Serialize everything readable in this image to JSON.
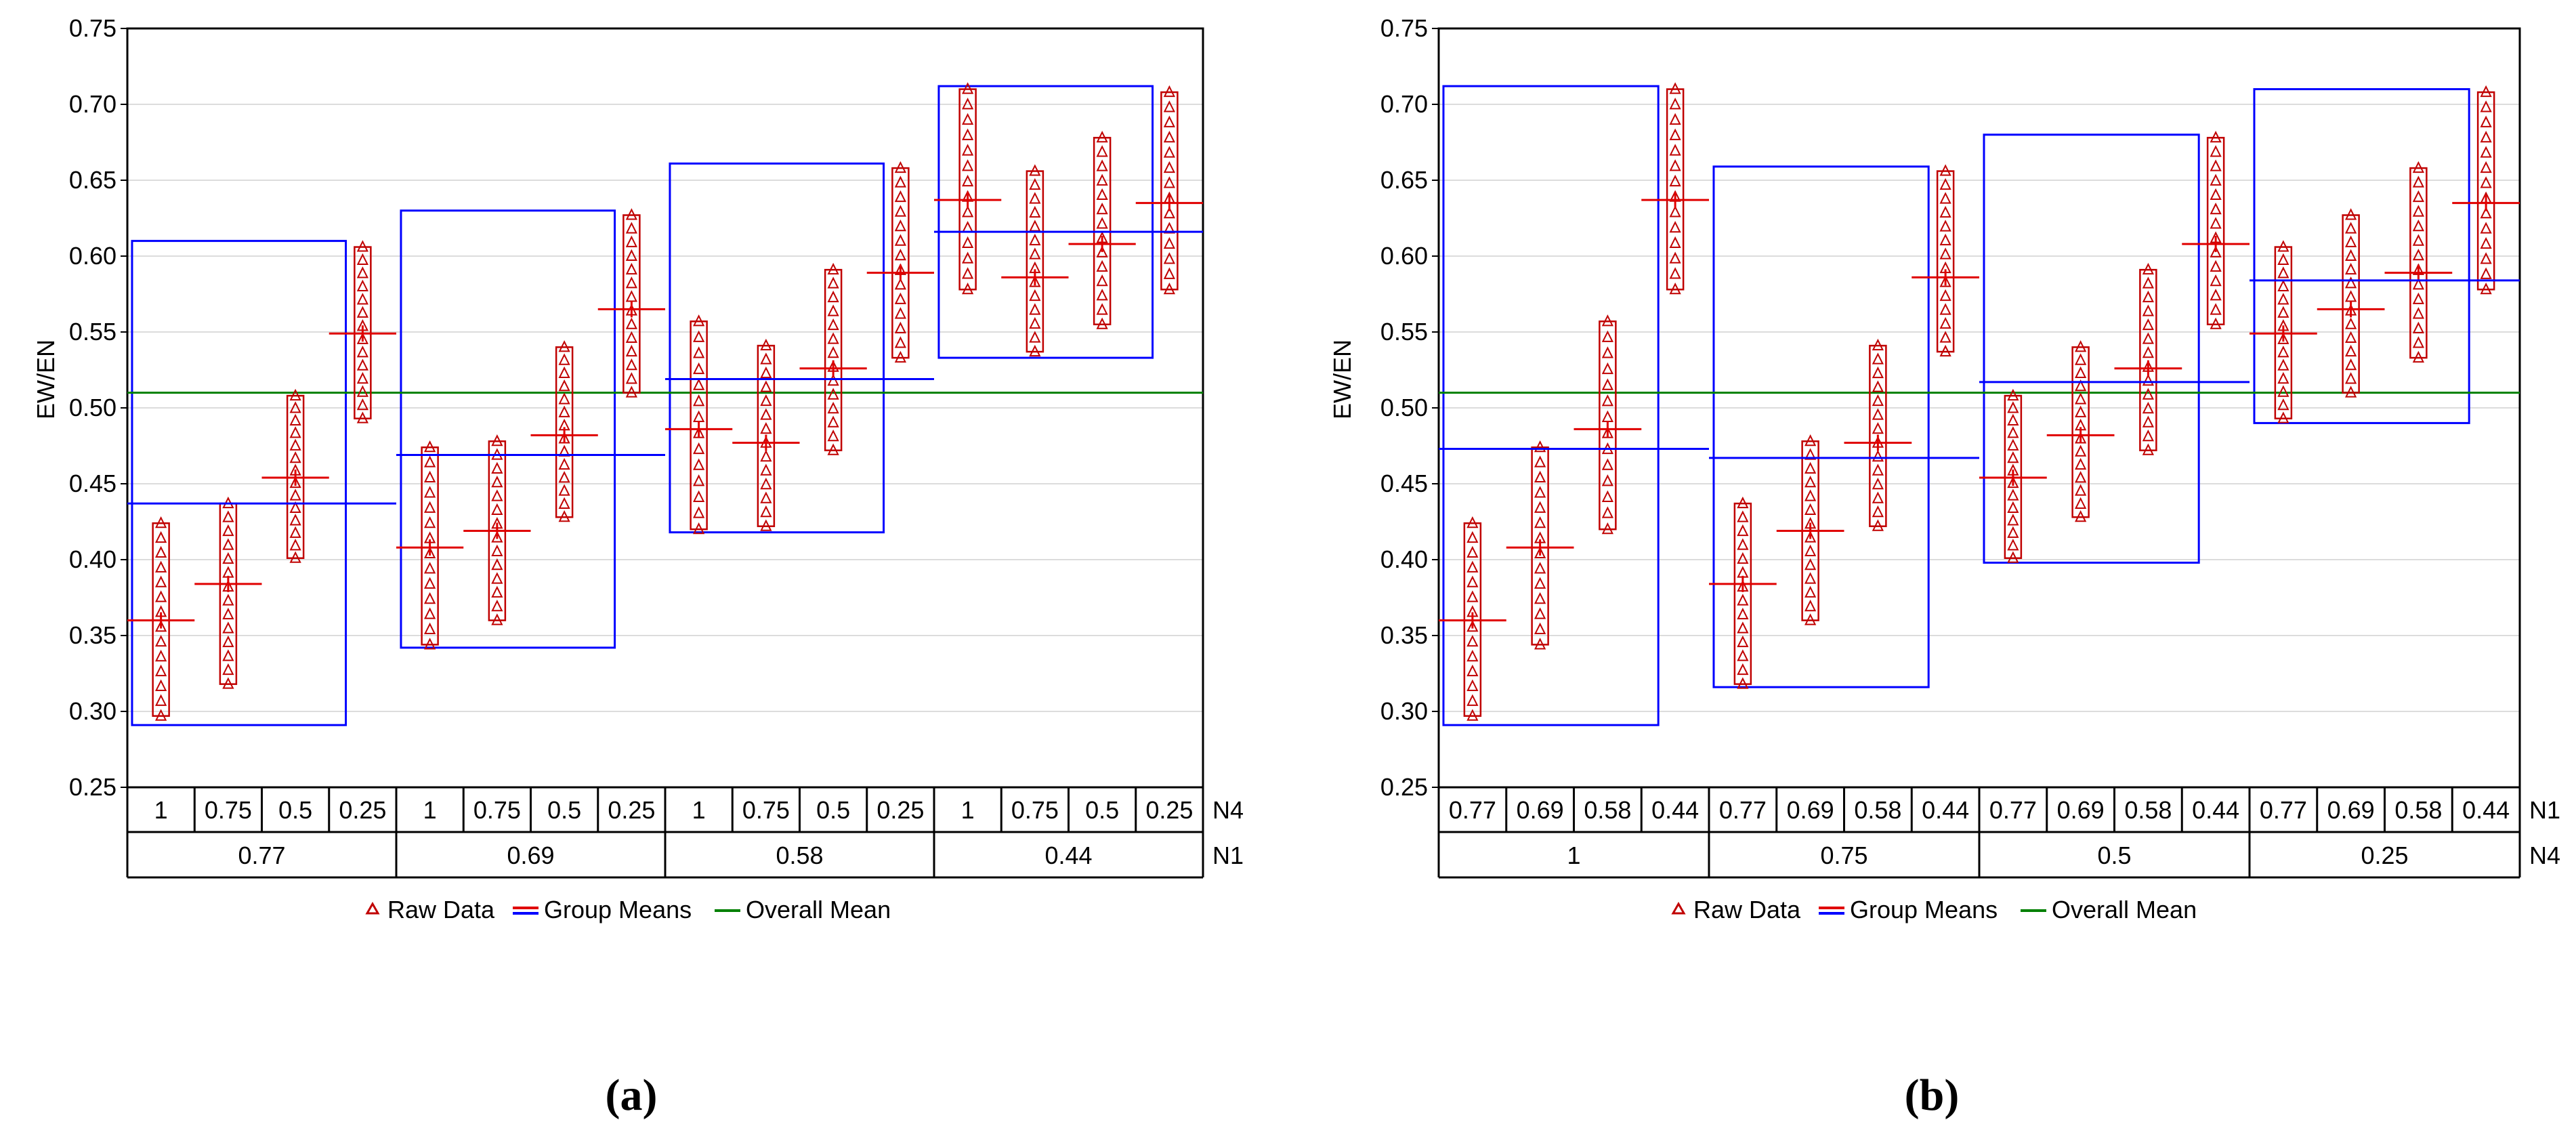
{
  "panels": [
    {
      "caption": "(a)",
      "ylabel": "EW/EN",
      "yticks": [
        "0.75",
        "0.70",
        "0.65",
        "0.60",
        "0.55",
        "0.50",
        "0.45",
        "0.40",
        "0.35",
        "0.30",
        "0.25"
      ],
      "inner_factor": {
        "name": "N4",
        "labels": [
          "1",
          "0.75",
          "0.5",
          "0.25"
        ]
      },
      "outer_factor": {
        "name": "N1",
        "labels": [
          "0.77",
          "0.69",
          "0.58",
          "0.44"
        ]
      },
      "legend": {
        "raw": "Raw Data",
        "group": "Group Means",
        "overall": "Overall Mean"
      }
    },
    {
      "caption": "(b)",
      "ylabel": "EW/EN",
      "yticks": [
        "0.75",
        "0.70",
        "0.65",
        "0.60",
        "0.55",
        "0.50",
        "0.45",
        "0.40",
        "0.35",
        "0.30",
        "0.25"
      ],
      "inner_factor": {
        "name": "N1",
        "labels": [
          "0.77",
          "0.69",
          "0.58",
          "0.44"
        ]
      },
      "outer_factor": {
        "name": "N4",
        "labels": [
          "1",
          "0.75",
          "0.5",
          "0.25"
        ]
      },
      "legend": {
        "raw": "Raw Data",
        "group": "Group Means",
        "overall": "Overall Mean"
      }
    }
  ],
  "colors": {
    "raw": "#c00000",
    "group_mean": "#0000ff",
    "overall_mean": "#008000",
    "cell_mean": "#e00000"
  },
  "chart_data": [
    {
      "type": "scatter",
      "ylabel": "EW/EN",
      "ylim": [
        0.25,
        0.75
      ],
      "grid": true,
      "legend_placement": "bottom-center",
      "overall_mean": 0.51,
      "groups": [
        {
          "outer": "0.77",
          "mean": 0.437,
          "box": [
            0.291,
            0.61
          ],
          "cells": [
            {
              "inner": "1",
              "mean": 0.36,
              "min": 0.297,
              "max": 0.424
            },
            {
              "inner": "0.75",
              "mean": 0.384,
              "min": 0.318,
              "max": 0.437
            },
            {
              "inner": "0.5",
              "mean": 0.454,
              "min": 0.401,
              "max": 0.508
            },
            {
              "inner": "0.25",
              "mean": 0.549,
              "min": 0.493,
              "max": 0.606
            }
          ]
        },
        {
          "outer": "0.69",
          "mean": 0.469,
          "box": [
            0.342,
            0.63
          ],
          "cells": [
            {
              "inner": "1",
              "mean": 0.408,
              "min": 0.344,
              "max": 0.474
            },
            {
              "inner": "0.75",
              "mean": 0.419,
              "min": 0.36,
              "max": 0.478
            },
            {
              "inner": "0.5",
              "mean": 0.482,
              "min": 0.428,
              "max": 0.54
            },
            {
              "inner": "0.25",
              "mean": 0.565,
              "min": 0.51,
              "max": 0.627
            }
          ]
        },
        {
          "outer": "0.58",
          "mean": 0.519,
          "box": [
            0.418,
            0.661
          ],
          "cells": [
            {
              "inner": "1",
              "mean": 0.486,
              "min": 0.42,
              "max": 0.557
            },
            {
              "inner": "0.75",
              "mean": 0.477,
              "min": 0.422,
              "max": 0.541
            },
            {
              "inner": "0.5",
              "mean": 0.526,
              "min": 0.472,
              "max": 0.591
            },
            {
              "inner": "0.25",
              "mean": 0.589,
              "min": 0.533,
              "max": 0.658
            }
          ]
        },
        {
          "outer": "0.44",
          "mean": 0.616,
          "box": [
            0.533,
            0.712
          ],
          "cells": [
            {
              "inner": "1",
              "mean": 0.637,
              "min": 0.578,
              "max": 0.71
            },
            {
              "inner": "0.75",
              "mean": 0.586,
              "min": 0.537,
              "max": 0.656
            },
            {
              "inner": "0.5",
              "mean": 0.608,
              "min": 0.555,
              "max": 0.678
            },
            {
              "inner": "0.25",
              "mean": 0.635,
              "min": 0.578,
              "max": 0.708
            }
          ]
        }
      ]
    },
    {
      "type": "scatter",
      "ylabel": "EW/EN",
      "ylim": [
        0.25,
        0.75
      ],
      "grid": true,
      "legend_placement": "bottom-center",
      "overall_mean": 0.51,
      "groups": [
        {
          "outer": "1",
          "mean": 0.473,
          "box": [
            0.291,
            0.712
          ],
          "cells": [
            {
              "inner": "0.77",
              "mean": 0.36,
              "min": 0.297,
              "max": 0.424
            },
            {
              "inner": "0.69",
              "mean": 0.408,
              "min": 0.344,
              "max": 0.474
            },
            {
              "inner": "0.58",
              "mean": 0.486,
              "min": 0.42,
              "max": 0.557
            },
            {
              "inner": "0.44",
              "mean": 0.637,
              "min": 0.578,
              "max": 0.71
            }
          ]
        },
        {
          "outer": "0.75",
          "mean": 0.467,
          "box": [
            0.316,
            0.659
          ],
          "cells": [
            {
              "inner": "0.77",
              "mean": 0.384,
              "min": 0.318,
              "max": 0.437
            },
            {
              "inner": "0.69",
              "mean": 0.419,
              "min": 0.36,
              "max": 0.478
            },
            {
              "inner": "0.58",
              "mean": 0.477,
              "min": 0.422,
              "max": 0.541
            },
            {
              "inner": "0.44",
              "mean": 0.586,
              "min": 0.537,
              "max": 0.656
            }
          ]
        },
        {
          "outer": "0.5",
          "mean": 0.517,
          "box": [
            0.398,
            0.68
          ],
          "cells": [
            {
              "inner": "0.77",
              "mean": 0.454,
              "min": 0.401,
              "max": 0.508
            },
            {
              "inner": "0.69",
              "mean": 0.482,
              "min": 0.428,
              "max": 0.54
            },
            {
              "inner": "0.58",
              "mean": 0.526,
              "min": 0.472,
              "max": 0.591
            },
            {
              "inner": "0.44",
              "mean": 0.608,
              "min": 0.555,
              "max": 0.678
            }
          ]
        },
        {
          "outer": "0.25",
          "mean": 0.584,
          "box": [
            0.49,
            0.71
          ],
          "cells": [
            {
              "inner": "0.77",
              "mean": 0.549,
              "min": 0.493,
              "max": 0.606
            },
            {
              "inner": "0.69",
              "mean": 0.565,
              "min": 0.51,
              "max": 0.627
            },
            {
              "inner": "0.58",
              "mean": 0.589,
              "min": 0.533,
              "max": 0.658
            },
            {
              "inner": "0.44",
              "mean": 0.635,
              "min": 0.578,
              "max": 0.708
            }
          ]
        }
      ]
    }
  ]
}
